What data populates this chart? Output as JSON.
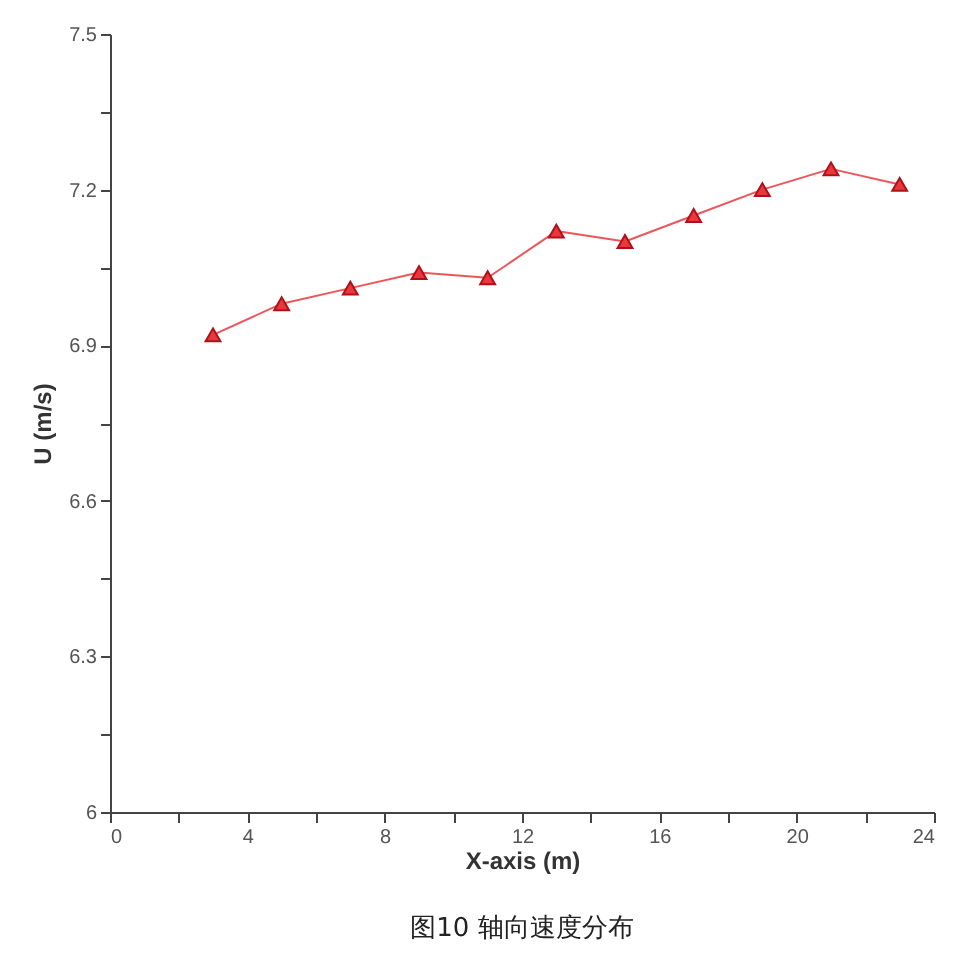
{
  "chart_data": {
    "type": "line",
    "xlabel": "X-axis (m)",
    "ylabel": "U (m/s)",
    "annotations": [
      "图10 轴向速度分布"
    ],
    "x": [
      3,
      5,
      7,
      9,
      11,
      13,
      15,
      17,
      19,
      21,
      23
    ],
    "series": [
      {
        "color": "#e8383d",
        "values": [
          6.92,
          6.98,
          7.01,
          7.04,
          7.03,
          7.12,
          7.1,
          7.15,
          7.2,
          7.24,
          7.21
        ]
      }
    ],
    "xlim": [
      0,
      24
    ],
    "xticks": [
      0,
      {
        "value": 2,
        "label": null
      },
      4,
      {
        "value": 6,
        "label": null
      },
      8,
      {
        "value": 10,
        "label": null
      },
      12,
      {
        "value": 14,
        "label": null
      },
      16,
      {
        "value": 18,
        "label": null
      },
      20,
      {
        "value": 22,
        "label": null
      },
      24
    ],
    "ylim": [
      6,
      7.5
    ],
    "yticks": [
      6,
      {
        "value": 6.15,
        "label": null
      },
      6.3,
      {
        "value": 6.45,
        "label": null
      },
      6.6,
      {
        "value": 6.75,
        "label": null
      },
      6.9,
      {
        "value": 7.05,
        "label": null
      },
      7.2,
      {
        "value": 7.35,
        "label": null
      },
      7.5
    ],
    "grid": false,
    "marker": "triangle",
    "line_style": "solid"
  }
}
